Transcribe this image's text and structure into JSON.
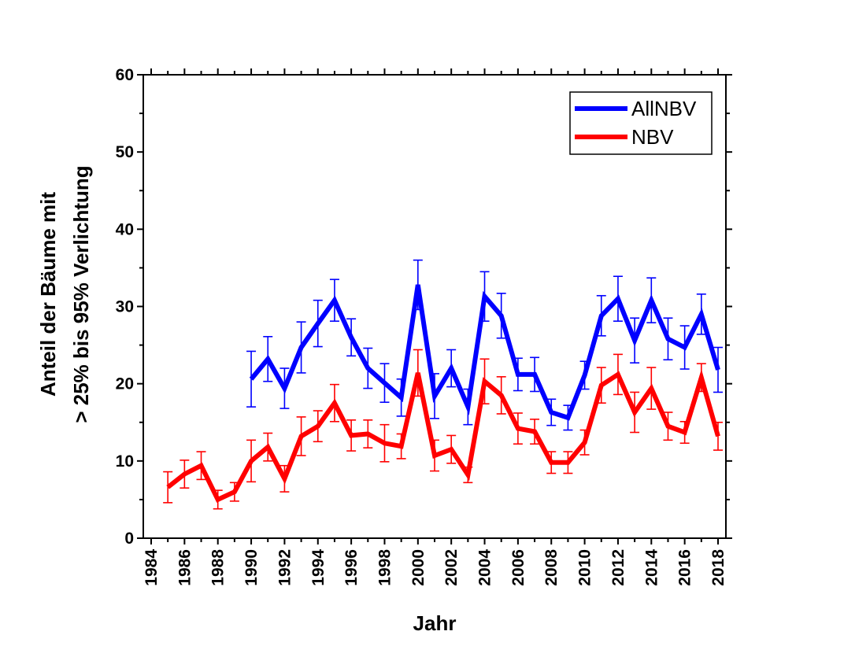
{
  "chart_data": {
    "type": "line",
    "xlabel": "Jahr",
    "ylabel_lines": [
      "Anteil der Bäume mit",
      "> 25% bis 95% Verlichtung"
    ],
    "xlim": [
      1984,
      2018
    ],
    "ylim": [
      0,
      60
    ],
    "xticks": [
      1984,
      1986,
      1988,
      1990,
      1992,
      1994,
      1996,
      1998,
      2000,
      2002,
      2004,
      2006,
      2008,
      2010,
      2012,
      2014,
      2016,
      2018
    ],
    "yticks": [
      0,
      10,
      20,
      30,
      40,
      50,
      60
    ],
    "legend_position": "top-right",
    "series": [
      {
        "name": "AllNBV",
        "color": "#0000ff",
        "x": [
          1990,
          1991,
          1992,
          1993,
          1994,
          1995,
          1996,
          1997,
          1998,
          1999,
          2000,
          2001,
          2002,
          2003,
          2004,
          2005,
          2006,
          2007,
          2008,
          2009,
          2010,
          2011,
          2012,
          2013,
          2014,
          2015,
          2016,
          2017,
          2018
        ],
        "y": [
          20.6,
          23.2,
          19.4,
          24.7,
          27.8,
          30.8,
          26,
          22,
          20.1,
          18.2,
          32.8,
          18.4,
          22,
          17,
          31.3,
          28.8,
          21.2,
          21.2,
          16.3,
          15.6,
          21.1,
          28.8,
          31,
          25.6,
          30.8,
          25.8,
          24.7,
          29,
          21.8
        ],
        "err": [
          3.6,
          2.9,
          2.6,
          3.3,
          3.0,
          2.7,
          2.4,
          2.6,
          2.5,
          2.4,
          3.2,
          2.9,
          2.4,
          2.3,
          3.2,
          2.9,
          2.1,
          2.2,
          1.7,
          1.6,
          1.8,
          2.6,
          2.9,
          2.9,
          2.9,
          2.7,
          2.8,
          2.6,
          2.9
        ]
      },
      {
        "name": "NBV",
        "color": "#ff0000",
        "x": [
          1985,
          1986,
          1987,
          1988,
          1989,
          1990,
          1991,
          1992,
          1993,
          1994,
          1995,
          1996,
          1997,
          1998,
          1999,
          2000,
          2001,
          2002,
          2003,
          2004,
          2005,
          2006,
          2007,
          2008,
          2009,
          2010,
          2011,
          2012,
          2013,
          2014,
          2015,
          2016,
          2017,
          2018
        ],
        "y": [
          6.6,
          8.3,
          9.4,
          5,
          6,
          10,
          11.8,
          7.7,
          13.2,
          14.5,
          17.5,
          13.3,
          13.5,
          12.3,
          11.9,
          21.4,
          10.7,
          11.5,
          8.2,
          20.3,
          18.5,
          14.2,
          13.8,
          9.8,
          9.8,
          12.4,
          19.8,
          21.2,
          16.3,
          19.4,
          14.5,
          13.7,
          20.8,
          13.2
        ],
        "err": [
          2.0,
          1.8,
          1.8,
          1.2,
          1.2,
          2.7,
          1.8,
          1.7,
          2.5,
          2.0,
          2.4,
          2.0,
          1.8,
          2.4,
          1.6,
          3.0,
          2.0,
          1.8,
          1.0,
          2.9,
          2.4,
          2.0,
          1.6,
          1.4,
          1.4,
          1.6,
          2.3,
          2.6,
          2.6,
          2.7,
          1.8,
          1.4,
          1.8,
          1.8
        ]
      }
    ]
  }
}
